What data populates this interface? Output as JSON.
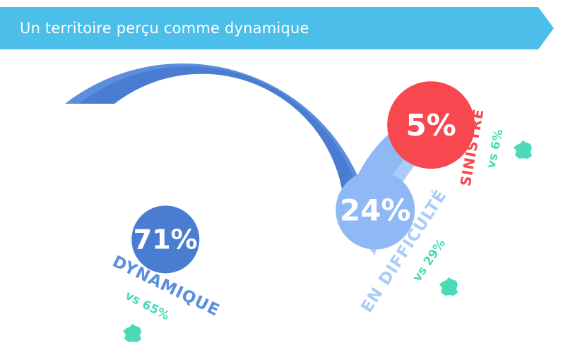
{
  "header": {
    "title": "Un territoire perçu comme dynamique",
    "color": "#4bbfe9"
  },
  "chart_data": {
    "type": "pie",
    "title": "",
    "series": [
      {
        "label": "DYNAMIQUE",
        "percent_label": "71%",
        "value": 71,
        "comparison": "vs 65%",
        "color": "#5b8edc",
        "dark": "#4a7dd1"
      },
      {
        "label": "EN DIFFICULTÉ",
        "percent_label": "24%",
        "value": 24,
        "comparison": "vs 29%",
        "color": "#a9ccfa",
        "dark": "#8fb9f5"
      },
      {
        "label": "SINISTRÉ",
        "percent_label": "5%",
        "value": 5,
        "comparison": "vs 6%",
        "color": "#f7474f",
        "dark": "#f7474f"
      }
    ],
    "comparison_color": "#4cd9b8",
    "comparison_icon": "france-map-icon"
  }
}
